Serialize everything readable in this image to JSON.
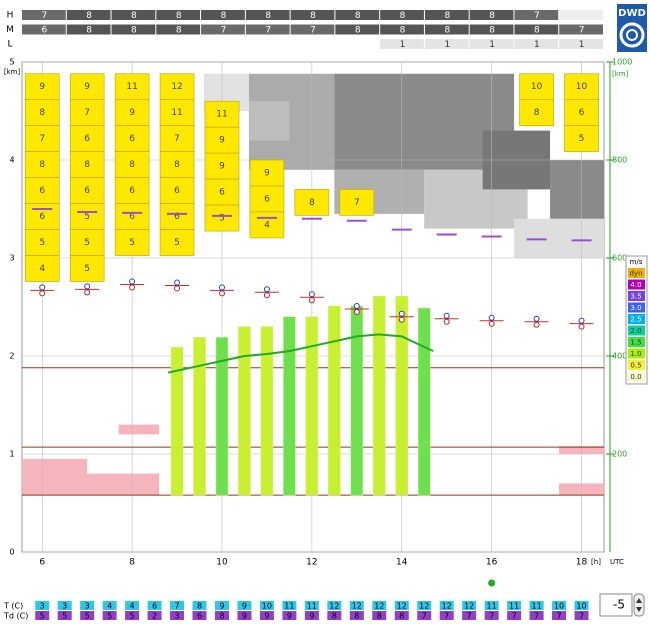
{
  "chart_data": {
    "type": "meteogram",
    "logo": "DWD",
    "xlim": [
      5.55,
      18.5
    ],
    "xticks": [
      6,
      8,
      10,
      12,
      14,
      16,
      18
    ],
    "x_label": "[h]",
    "x_unit": "UTC",
    "ylim": [
      0,
      5
    ],
    "yticks": [
      0,
      1,
      2,
      3,
      4,
      5
    ],
    "y_label": "[km]",
    "y2lim": [
      0,
      1000
    ],
    "y2ticks": [
      200,
      400,
      600,
      800,
      1000
    ],
    "y2_label": "[km]",
    "cloud_layers": [
      {
        "name": "H",
        "values": [
          7,
          8,
          8,
          8,
          8,
          8,
          8,
          8,
          8,
          8,
          8,
          7,
          null
        ]
      },
      {
        "name": "M",
        "values": [
          6,
          8,
          8,
          8,
          7,
          7,
          7,
          8,
          8,
          8,
          8,
          8,
          7
        ]
      },
      {
        "name": "L",
        "values": [
          null,
          null,
          null,
          null,
          null,
          null,
          null,
          null,
          1,
          1,
          1,
          1,
          1
        ]
      }
    ],
    "layer_hours": [
      6,
      7,
      8,
      9,
      10,
      11,
      12,
      13,
      14,
      15,
      16,
      17,
      18
    ],
    "gray_cells": [
      [
        9.6,
        10.6,
        4.5,
        4.88,
        "#e2e2e2"
      ],
      [
        10.6,
        12.5,
        3.9,
        4.88,
        "#ababab"
      ],
      [
        12.5,
        16.5,
        3.9,
        4.88,
        "#8a8a8a"
      ],
      [
        10.6,
        11.5,
        4.2,
        4.6,
        "#bdbdbd"
      ],
      [
        12.5,
        14.5,
        3.45,
        3.9,
        "#b0b0b0"
      ],
      [
        14.5,
        16.8,
        3.3,
        3.9,
        "#c8c8c8"
      ],
      [
        15.8,
        17.3,
        3.7,
        4.3,
        "#777777"
      ],
      [
        17.3,
        18.5,
        3.4,
        4.0,
        "#8a8a8a"
      ],
      [
        16.5,
        18.5,
        3.0,
        3.4,
        "#dedede"
      ]
    ],
    "cloud_columns": [
      {
        "x": 6,
        "top": 4.88,
        "values": [
          9,
          8,
          7,
          8,
          6,
          6,
          5,
          4
        ]
      },
      {
        "x": 7,
        "top": 4.88,
        "values": [
          9,
          7,
          6,
          8,
          6,
          5,
          5,
          5
        ]
      },
      {
        "x": 8,
        "top": 4.88,
        "values": [
          11,
          9,
          6,
          8,
          6,
          6,
          5
        ]
      },
      {
        "x": 9,
        "top": 4.88,
        "values": [
          12,
          11,
          7,
          8,
          6,
          6,
          5
        ]
      },
      {
        "x": 10,
        "top": 4.6,
        "values": [
          11,
          9,
          9,
          6,
          5
        ]
      },
      {
        "x": 11,
        "top": 4.0,
        "values": [
          9,
          6,
          4
        ]
      },
      {
        "x": 12,
        "top": 3.7,
        "values": [
          8
        ]
      },
      {
        "x": 13,
        "top": 3.7,
        "values": [
          7
        ]
      },
      {
        "x": 17,
        "top": 4.88,
        "values": [
          10,
          8
        ]
      },
      {
        "x": 18,
        "top": 4.88,
        "values": [
          10,
          6,
          5
        ]
      }
    ],
    "cloud_color": "#ffe800",
    "pink_bands": [
      [
        5.55,
        8.6,
        0.58,
        0.8
      ],
      [
        5.55,
        7.0,
        0.8,
        0.95
      ],
      [
        7.7,
        8.6,
        1.2,
        1.3
      ],
      [
        17.5,
        18.5,
        0.58,
        0.7
      ],
      [
        17.5,
        18.5,
        1.0,
        1.08
      ]
    ],
    "pink_color": "#f6b4bc",
    "level_lines": [
      1.88,
      1.07,
      0.58
    ],
    "level_color": "#8b3a1a",
    "markers": {
      "x": [
        6,
        7,
        8,
        9,
        10,
        11,
        12,
        13,
        14,
        15,
        16,
        17,
        18
      ],
      "y": [
        2.67,
        2.68,
        2.73,
        2.72,
        2.67,
        2.65,
        2.6,
        2.48,
        2.4,
        2.38,
        2.36,
        2.35,
        2.33
      ]
    },
    "purple_marks": {
      "x": [
        6,
        7,
        8,
        9,
        10,
        11,
        12,
        13,
        14,
        15,
        16,
        17,
        18
      ],
      "y": [
        3.5,
        3.47,
        3.46,
        3.45,
        3.43,
        3.41,
        3.4,
        3.38,
        3.29,
        3.24,
        3.22,
        3.19,
        3.18
      ]
    },
    "updrafts": {
      "x": [
        9.0,
        9.5,
        10.0,
        10.5,
        11.0,
        11.5,
        12.0,
        12.5,
        13.0,
        13.5,
        14.0,
        14.5
      ],
      "top": [
        2.09,
        2.19,
        2.19,
        2.3,
        2.3,
        2.4,
        2.4,
        2.51,
        2.51,
        2.61,
        2.61,
        2.49
      ],
      "bottom": 0.58,
      "color": "#c8f030",
      "alt_color": "#6ee050"
    },
    "trend": {
      "x": [
        8.8,
        9.5,
        10,
        10.5,
        11,
        11.5,
        12,
        12.5,
        13,
        13.5,
        14,
        14.7
      ],
      "y": [
        1.83,
        1.9,
        1.95,
        2.0,
        2.02,
        2.05,
        2.1,
        2.15,
        2.2,
        2.22,
        2.2,
        2.05
      ],
      "color": "#22aa22"
    },
    "legend": {
      "title": "m/s",
      "labels": [
        "dyn",
        "4.0",
        "3.5",
        "3.0",
        "2.5",
        "2.0",
        "1.5",
        "1.0",
        "0.5",
        "0.0"
      ],
      "colors": [
        "#f0b000",
        "#b000b0",
        "#7a40e0",
        "#3a60ff",
        "#00b0f0",
        "#00d0a0",
        "#40e040",
        "#a8f000",
        "#f4f040",
        "#fafac8"
      ]
    },
    "temps": {
      "x": [
        6,
        6.5,
        7,
        7.5,
        8,
        8.5,
        9,
        9.5,
        10,
        10.5,
        11,
        11.5,
        12,
        12.5,
        13,
        13.5,
        14,
        14.5,
        15,
        15.5,
        16,
        16.5,
        17,
        17.5,
        18
      ],
      "T_label": "T (C)",
      "Td_label": "Td (C)",
      "T": [
        3,
        3,
        3,
        4,
        4,
        6,
        7,
        8,
        9,
        9,
        10,
        11,
        11,
        12,
        12,
        12,
        12,
        12,
        12,
        12,
        11,
        11,
        11,
        10,
        10
      ],
      "Td": [
        5,
        5,
        5,
        5,
        5,
        2,
        3,
        6,
        8,
        9,
        9,
        9,
        9,
        8,
        8,
        8,
        8,
        7,
        7,
        7,
        7,
        7,
        7,
        7,
        7
      ],
      "T_color": "#30c8e0",
      "Td_color": "#9040c0"
    },
    "spinner": -5
  }
}
